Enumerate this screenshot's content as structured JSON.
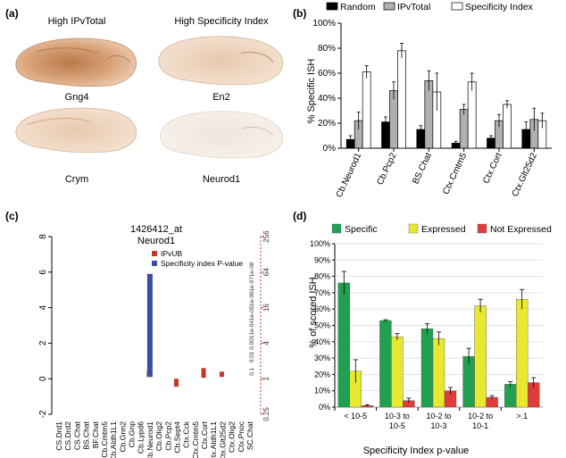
{
  "panel_a": {
    "tag": "(a)",
    "col_left_title": "High IPvTotal",
    "col_right_title": "High Specificity Index",
    "genes": [
      "Gng4",
      "En2",
      "Crym",
      "Neurod1"
    ]
  },
  "chart_data": [
    {
      "id": "b",
      "tag": "(b)",
      "type": "bar",
      "categories": [
        "Cb.Neurod1",
        "Cb.Pcp2",
        "BS.Chat",
        "Ctx.Cmtm5",
        "Ctx.Cort",
        "Ctx.Glt25d2"
      ],
      "series": [
        {
          "name": "Random",
          "color": "#000000",
          "values": [
            7,
            21,
            15,
            4,
            8,
            15
          ],
          "err": [
            3,
            4,
            3,
            1.5,
            2,
            6
          ]
        },
        {
          "name": "IPvTotal",
          "color": "#b0b0b0",
          "values": [
            22,
            46,
            54,
            31,
            22,
            23
          ],
          "err": [
            7,
            7,
            8,
            4,
            5,
            9
          ]
        },
        {
          "name": "Specificity Index",
          "color": "#ffffff",
          "values": [
            61,
            78,
            45,
            53,
            35,
            22
          ],
          "err": [
            5,
            6,
            15,
            7,
            3,
            6
          ]
        }
      ],
      "ylabel": "% Specific ISH",
      "ylim": [
        0,
        100
      ],
      "yticks": [
        "0%",
        "20%",
        "40%",
        "60%",
        "80%",
        "100%"
      ]
    },
    {
      "id": "c",
      "tag": "(c)",
      "type": "bar",
      "title": "1426412_at",
      "subtitle": "Neurod1",
      "categories": [
        "CS.Drd1",
        "CS.Drd2",
        "CS.Chat",
        "BS.Chat",
        "BF.Chat",
        "Cb.Cmtm5",
        "Cb.Aldh1L1",
        "Cb.Grm2",
        "Cb.Gnp",
        "Cb.Lypd6",
        "Cb.Neurod1",
        "Cb.Olig2",
        "Cb.Pcp2",
        "Cb.Sept4",
        "Ctx.Cck",
        "Ctx.Cmtm5",
        "Ctx.Cort",
        "Ctx.Aldh1L1",
        "Ctx.Glt25d2",
        "Ctx.Olig2",
        "Ctx.Pnoc",
        "SC.Chat"
      ],
      "ylim": [
        -2,
        8
      ],
      "yticks": [
        "-2",
        "0",
        "2",
        "4",
        "6",
        "8"
      ],
      "right_ticks": [
        "0.25",
        "1",
        "4",
        "16",
        "64",
        "256"
      ],
      "right_ticks_small": [
        "0.1",
        "0.01",
        "0.001",
        "1e-04",
        "1e-05",
        "1e-06",
        "1e-07",
        "1e-08"
      ],
      "legend": [
        "IPvUB",
        "Specificity index P-value"
      ],
      "series": [
        {
          "name": "IPvUB",
          "color": "#c0392b",
          "points": [
            {
              "cat": "Cb.Neurod1",
              "lo": 0.1,
              "hi": 0.45
            },
            {
              "cat": "Cb.Sept4",
              "lo": -0.45,
              "hi": 0.0
            },
            {
              "cat": "Ctx.Cort",
              "lo": 0.05,
              "hi": 0.6
            },
            {
              "cat": "Ctx.Glt25d2",
              "lo": 0.1,
              "hi": 0.4
            }
          ]
        },
        {
          "name": "Specificity index P-value",
          "color": "#3b4fa0",
          "points": [
            {
              "cat": "Cb.Neurod1",
              "lo": 0.1,
              "hi": 5.9
            }
          ]
        }
      ]
    },
    {
      "id": "d",
      "tag": "(d)",
      "type": "bar",
      "categories": [
        "< 10-5",
        "10-3 to 10-5",
        "10-2 to 10-3",
        "10-2 to 10-1",
        ">.1"
      ],
      "xlabel": "Specificity Index p-value",
      "ylabel": "% of scored ISH",
      "ylim": [
        0,
        100
      ],
      "yticks": [
        "0%",
        "10%",
        "20%",
        "30%",
        "40%",
        "50%",
        "60%",
        "70%",
        "80%",
        "90%",
        "100%"
      ],
      "series": [
        {
          "name": "Specific",
          "color": "#21a050",
          "values": [
            76,
            53,
            48,
            31,
            14
          ],
          "err": [
            7,
            0.5,
            3,
            5,
            1.5
          ]
        },
        {
          "name": "Expressed",
          "color": "#e8e830",
          "values": [
            22,
            43,
            42,
            62,
            66
          ],
          "err": [
            7,
            2,
            4,
            4,
            6
          ]
        },
        {
          "name": "Not Expressed",
          "color": "#e03c3c",
          "values": [
            1,
            4,
            10,
            6,
            15
          ],
          "err": [
            0.5,
            1.5,
            2,
            1,
            3
          ]
        }
      ]
    }
  ]
}
